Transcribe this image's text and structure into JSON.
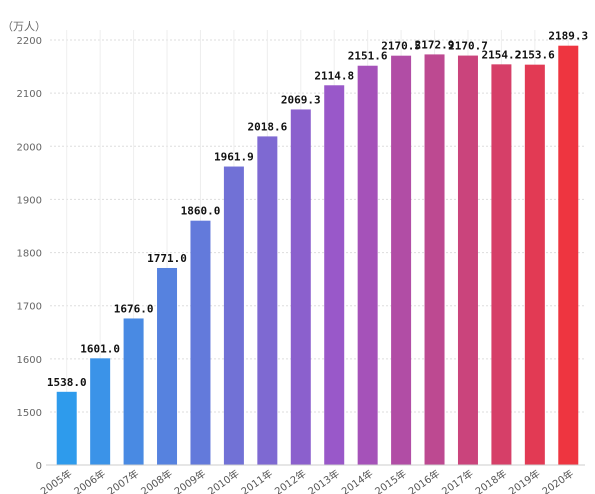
{
  "chart_data": {
    "type": "bar",
    "unit_label": "（万人）",
    "categories": [
      "2005年",
      "2006年",
      "2007年",
      "2008年",
      "2009年",
      "2010年",
      "2011年",
      "2012年",
      "2013年",
      "2014年",
      "2015年",
      "2016年",
      "2017年",
      "2018年",
      "2019年",
      "2020年"
    ],
    "values": [
      1538.0,
      1601.0,
      1676.0,
      1771.0,
      1860.0,
      1961.9,
      2018.6,
      2069.3,
      2114.8,
      2151.6,
      2170.5,
      2172.9,
      2170.7,
      2154.2,
      2153.6,
      2189.3
    ],
    "value_labels": [
      "1538.0",
      "1601.0",
      "1676.0",
      "1771.0",
      "1860.0",
      "1961.9",
      "2018.6",
      "2069.3",
      "2114.8",
      "2151.6",
      "2170.5",
      "2172.9",
      "2170.7",
      "2154.2",
      "2153.6",
      "2189.3"
    ],
    "y_ticks": [
      0,
      1500,
      1600,
      1700,
      1800,
      1900,
      2000,
      2100,
      2200
    ],
    "axis_break": true,
    "ylim": [
      1500,
      2200
    ],
    "grid": true,
    "bar_color_start": "#2e9bec",
    "bar_color_end": "#ee3540",
    "gridline_color": "#dddddd"
  }
}
